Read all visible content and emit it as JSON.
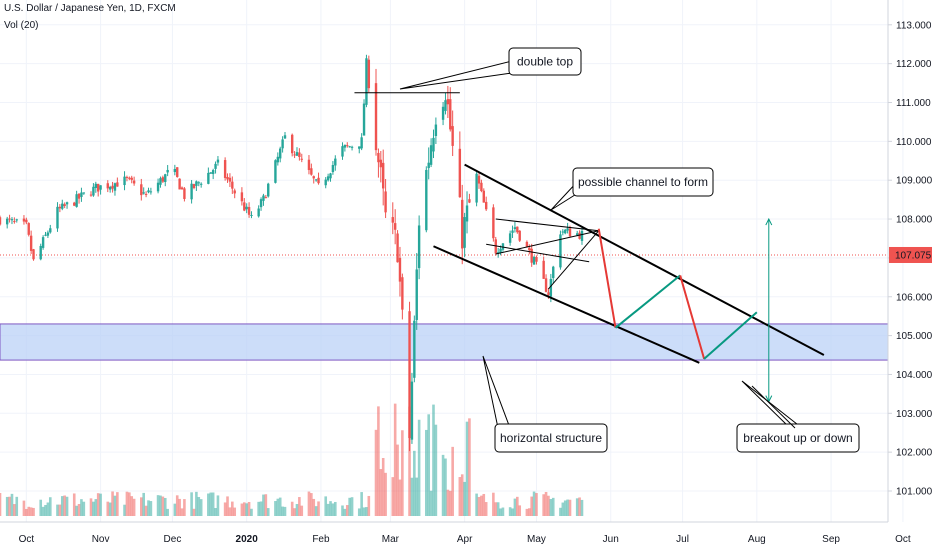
{
  "header": {
    "symbol_line": "U.S. Dollar / Japanese Yen, 1D, FXCM",
    "volume_line": "Vol (20)"
  },
  "chart_data": {
    "type": "candlestick",
    "y_axis": {
      "ticks": [
        "113.000",
        "112.000",
        "111.000",
        "110.000",
        "109.000",
        "108.000",
        "107.000",
        "106.000",
        "105.000",
        "104.000",
        "103.000",
        "102.000",
        "101.000"
      ],
      "range": [
        100.3,
        113.3
      ],
      "current_price": "107.075"
    },
    "x_axis": {
      "ticks": [
        "Oct",
        "Nov",
        "Dec",
        "2020",
        "Feb",
        "Mar",
        "Apr",
        "May",
        "Jun",
        "Jul",
        "Aug",
        "Sep",
        "Oct"
      ],
      "range": [
        "2019-09-20",
        "2020-10-20"
      ]
    },
    "price_path": [
      {
        "date": "2019-09-20",
        "close": 108.0
      },
      {
        "date": "2019-10-01",
        "close": 107.8
      },
      {
        "date": "2019-10-04",
        "close": 106.9
      },
      {
        "date": "2019-10-14",
        "close": 108.2
      },
      {
        "date": "2019-10-30",
        "close": 108.8
      },
      {
        "date": "2019-11-12",
        "close": 109.0
      },
      {
        "date": "2019-11-20",
        "close": 108.6
      },
      {
        "date": "2019-12-01",
        "close": 109.3
      },
      {
        "date": "2019-12-06",
        "close": 108.6
      },
      {
        "date": "2019-12-20",
        "close": 109.4
      },
      {
        "date": "2020-01-03",
        "close": 108.0
      },
      {
        "date": "2020-01-08",
        "close": 108.5
      },
      {
        "date": "2020-01-17",
        "close": 110.1
      },
      {
        "date": "2020-01-31",
        "close": 108.8
      },
      {
        "date": "2020-02-10",
        "close": 109.8
      },
      {
        "date": "2020-02-18",
        "close": 110.0
      },
      {
        "date": "2020-02-20",
        "close": 112.0
      },
      {
        "date": "2020-02-28",
        "close": 108.0
      },
      {
        "date": "2020-03-04",
        "close": 107.3
      },
      {
        "date": "2020-03-09",
        "close": 102.4
      },
      {
        "date": "2020-03-13",
        "close": 108.0
      },
      {
        "date": "2020-03-20",
        "close": 110.8
      },
      {
        "date": "2020-03-24",
        "close": 111.4
      },
      {
        "date": "2020-03-31",
        "close": 107.6
      },
      {
        "date": "2020-04-06",
        "close": 109.1
      },
      {
        "date": "2020-04-14",
        "close": 107.2
      },
      {
        "date": "2020-04-22",
        "close": 107.8
      },
      {
        "date": "2020-04-30",
        "close": 106.9
      },
      {
        "date": "2020-05-06",
        "close": 106.1
      },
      {
        "date": "2020-05-11",
        "close": 107.7
      },
      {
        "date": "2020-05-20",
        "close": 107.6
      }
    ],
    "volume_bars": 165,
    "projection": [
      {
        "date": "2020-05-27",
        "price": 107.75,
        "direction": "down"
      },
      {
        "date": "2020-06-03",
        "price": 105.2,
        "direction": "up"
      },
      {
        "date": "2020-06-30",
        "price": 106.55,
        "direction": "down"
      },
      {
        "date": "2020-07-10",
        "price": 104.4,
        "direction": "up"
      },
      {
        "date": "2020-08-01",
        "price": 105.6
      }
    ],
    "channel_lines": [
      {
        "from": {
          "date": "2020-04-01",
          "price": 109.4
        },
        "to": {
          "date": "2020-08-29",
          "price": 104.5
        }
      },
      {
        "from": {
          "date": "2020-03-19",
          "price": 107.3
        },
        "to": {
          "date": "2020-07-08",
          "price": 104.3
        }
      }
    ],
    "support_zone": [
      104.37,
      105.3
    ],
    "annotations": [
      "double top",
      "possible channel to form",
      "horizontal structure",
      "breakout up or down"
    ],
    "colors": {
      "up": "#26a69a",
      "down": "#ef5350",
      "zone": "#bbd2f7",
      "zone_border": "#7e57c2",
      "projection_up": "#089981",
      "projection_down": "#e53935",
      "price_line": "#ef5350"
    }
  }
}
